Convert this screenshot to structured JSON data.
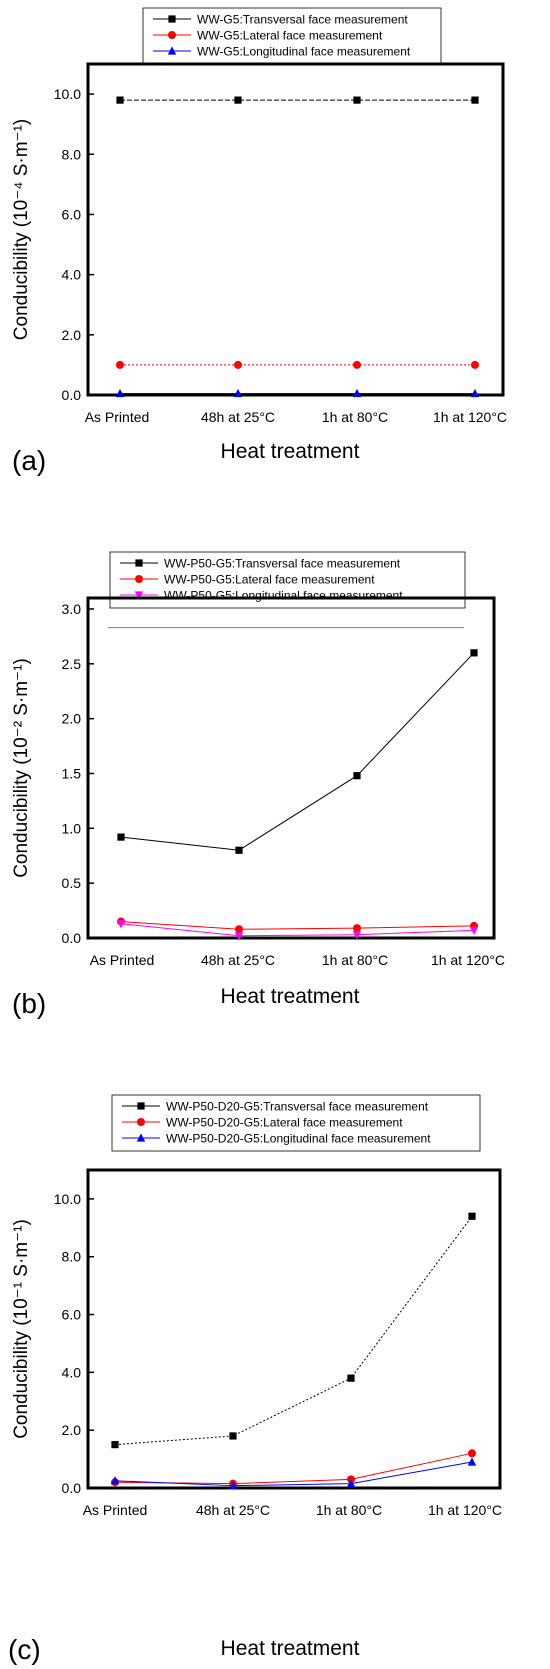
{
  "chart_data": [
    {
      "panel_label": "(a)",
      "type": "line",
      "xlabel": "Heat treatment",
      "ylabel": "Conducibility (10⁻⁴ S·m⁻¹)",
      "categories": [
        "As Printed",
        "48h at 25°C",
        "1h at 80°C",
        "1h at 120°C"
      ],
      "ylim": [
        0,
        11
      ],
      "yticks": [
        0,
        2,
        4,
        6,
        8,
        10
      ],
      "ytick_labels": [
        "0.0",
        "2.0",
        "4.0",
        "6.0",
        "8.0",
        "10.0"
      ],
      "legend_position": "top-center",
      "grid": false,
      "series": [
        {
          "name": "WW-G5:Transversal face measurement",
          "values": [
            9.8,
            9.8,
            9.8,
            9.8
          ],
          "color": "#000000",
          "marker": "square",
          "dash": "dashed"
        },
        {
          "name": "WW-G5:Lateral face measurement",
          "values": [
            1.0,
            1.0,
            1.0,
            1.0
          ],
          "color": "#ff0000",
          "marker": "circle",
          "dash": "dotted"
        },
        {
          "name": "WW-G5:Longitudinal face measurement",
          "values": [
            0.05,
            0.05,
            0.05,
            0.05
          ],
          "color": "#0000ff",
          "marker": "triangle-up",
          "dash": "solid"
        }
      ]
    },
    {
      "panel_label": "(b)",
      "type": "line",
      "xlabel": "Heat treatment",
      "ylabel": "Conducibility (10⁻² S·m⁻¹)",
      "categories": [
        "As Printed",
        "48h at 25°C",
        "1h at 80°C",
        "1h at 120°C"
      ],
      "ylim": [
        0,
        3.1
      ],
      "yticks": [
        0,
        0.5,
        1.0,
        1.5,
        2.0,
        2.5,
        3.0
      ],
      "ytick_labels": [
        "0.0",
        "0.5",
        "1.0",
        "1.5",
        "2.0",
        "2.5",
        "3.0"
      ],
      "legend_position": "top-center",
      "grid": false,
      "reference_line_y": 2.83,
      "series": [
        {
          "name": "WW-P50-G5:Transversal face measurement",
          "values": [
            0.92,
            0.8,
            1.48,
            2.6
          ],
          "color": "#000000",
          "marker": "square",
          "dash": "solid"
        },
        {
          "name": "WW-P50-G5:Lateral face measurement",
          "values": [
            0.15,
            0.08,
            0.09,
            0.11
          ],
          "color": "#ff0000",
          "marker": "circle",
          "dash": "solid"
        },
        {
          "name": "WW-P50-G5:Longitudinal face measurement",
          "values": [
            0.13,
            0.02,
            0.03,
            0.07
          ],
          "color": "#ff00ff",
          "marker": "triangle-down",
          "dash": "solid"
        }
      ]
    },
    {
      "panel_label": "(c)",
      "type": "line",
      "xlabel": "Heat treatment",
      "ylabel": "Conducibility (10⁻¹ S·m⁻¹)",
      "categories": [
        "As Printed",
        "48h at 25°C",
        "1h at 80°C",
        "1h at 120°C"
      ],
      "ylim": [
        0,
        11
      ],
      "yticks": [
        0,
        2,
        4,
        6,
        8,
        10
      ],
      "ytick_labels": [
        "0.0",
        "2.0",
        "4.0",
        "6.0",
        "8.0",
        "10.0"
      ],
      "legend_position": "top-center",
      "grid": false,
      "series": [
        {
          "name": "WW-P50-D20-G5:Transversal face measurement",
          "values": [
            1.5,
            1.8,
            3.8,
            9.4
          ],
          "color": "#000000",
          "marker": "square",
          "dash": "dotted"
        },
        {
          "name": "WW-P50-D20-G5:Lateral face measurement",
          "values": [
            0.2,
            0.15,
            0.3,
            1.2
          ],
          "color": "#ff0000",
          "marker": "circle",
          "dash": "solid"
        },
        {
          "name": "WW-P50-D20-G5:Longitudinal face measurement",
          "values": [
            0.25,
            0.08,
            0.15,
            0.9
          ],
          "color": "#0000ff",
          "marker": "triangle-up",
          "dash": "solid"
        }
      ]
    }
  ]
}
